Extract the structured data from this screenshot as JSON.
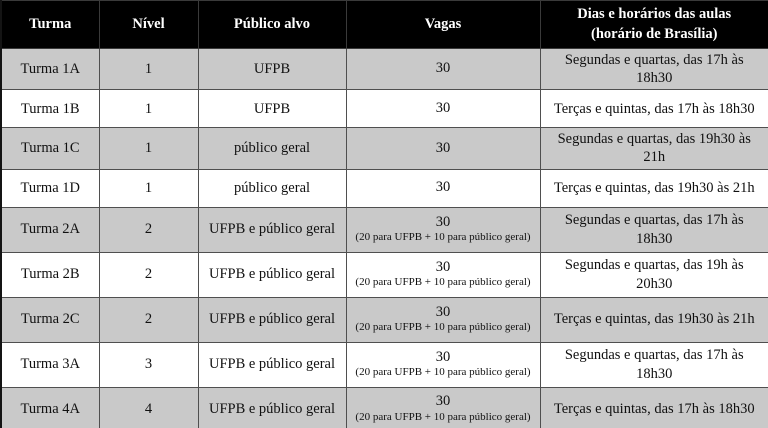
{
  "colors": {
    "header_bg": "#000000",
    "header_text": "#ffffff",
    "row_shaded_bg": "#c9c9c9",
    "row_plain_bg": "#ffffff",
    "inner_border": "#4f4f4f",
    "outer_border": "#141414"
  },
  "table": {
    "columns": [
      {
        "label": "Turma"
      },
      {
        "label": "Nível"
      },
      {
        "label": "Público alvo"
      },
      {
        "label": "Vagas"
      },
      {
        "label": "Dias e horários das aulas",
        "sublabel": "(horário de Brasília)"
      }
    ],
    "rows": [
      {
        "turma": "Turma 1A",
        "nivel": "1",
        "publico": "UFPB",
        "vagas": "30",
        "vagas_detail": "",
        "dias": "Segundas e quartas, das 17h às 18h30",
        "shaded": true
      },
      {
        "turma": "Turma 1B",
        "nivel": "1",
        "publico": "UFPB",
        "vagas": "30",
        "vagas_detail": "",
        "dias": "Terças e quintas, das 17h às 18h30",
        "shaded": false
      },
      {
        "turma": "Turma 1C",
        "nivel": "1",
        "publico": "público geral",
        "vagas": "30",
        "vagas_detail": "",
        "dias": "Segundas e quartas, das 19h30 às 21h",
        "shaded": true
      },
      {
        "turma": "Turma 1D",
        "nivel": "1",
        "publico": "público geral",
        "vagas": "30",
        "vagas_detail": "",
        "dias": "Terças e quintas, das 19h30 às 21h",
        "shaded": false
      },
      {
        "turma": "Turma 2A",
        "nivel": "2",
        "publico": "UFPB e público geral",
        "vagas": "30",
        "vagas_detail": "(20 para UFPB + 10 para público geral)",
        "dias": "Segundas e quartas, das 17h às 18h30",
        "shaded": true
      },
      {
        "turma": "Turma 2B",
        "nivel": "2",
        "publico": "UFPB e público geral",
        "vagas": "30",
        "vagas_detail": "(20 para UFPB + 10 para público geral)",
        "dias": "Segundas e quartas, das 19h às 20h30",
        "shaded": false
      },
      {
        "turma": "Turma 2C",
        "nivel": "2",
        "publico": "UFPB e público geral",
        "vagas": "30",
        "vagas_detail": "(20 para UFPB + 10 para público geral)",
        "dias": "Terças e quintas, das 19h30 às 21h",
        "shaded": true
      },
      {
        "turma": "Turma 3A",
        "nivel": "3",
        "publico": "UFPB e público geral",
        "vagas": "30",
        "vagas_detail": "(20 para UFPB + 10 para público geral)",
        "dias": "Segundas e quartas, das 17h às 18h30",
        "shaded": false
      },
      {
        "turma": "Turma 4A",
        "nivel": "4",
        "publico": "UFPB e público geral",
        "vagas": "30",
        "vagas_detail": "(20 para UFPB + 10 para público geral)",
        "dias": "Terças e quintas, das 17h às 18h30",
        "shaded": true
      }
    ]
  }
}
